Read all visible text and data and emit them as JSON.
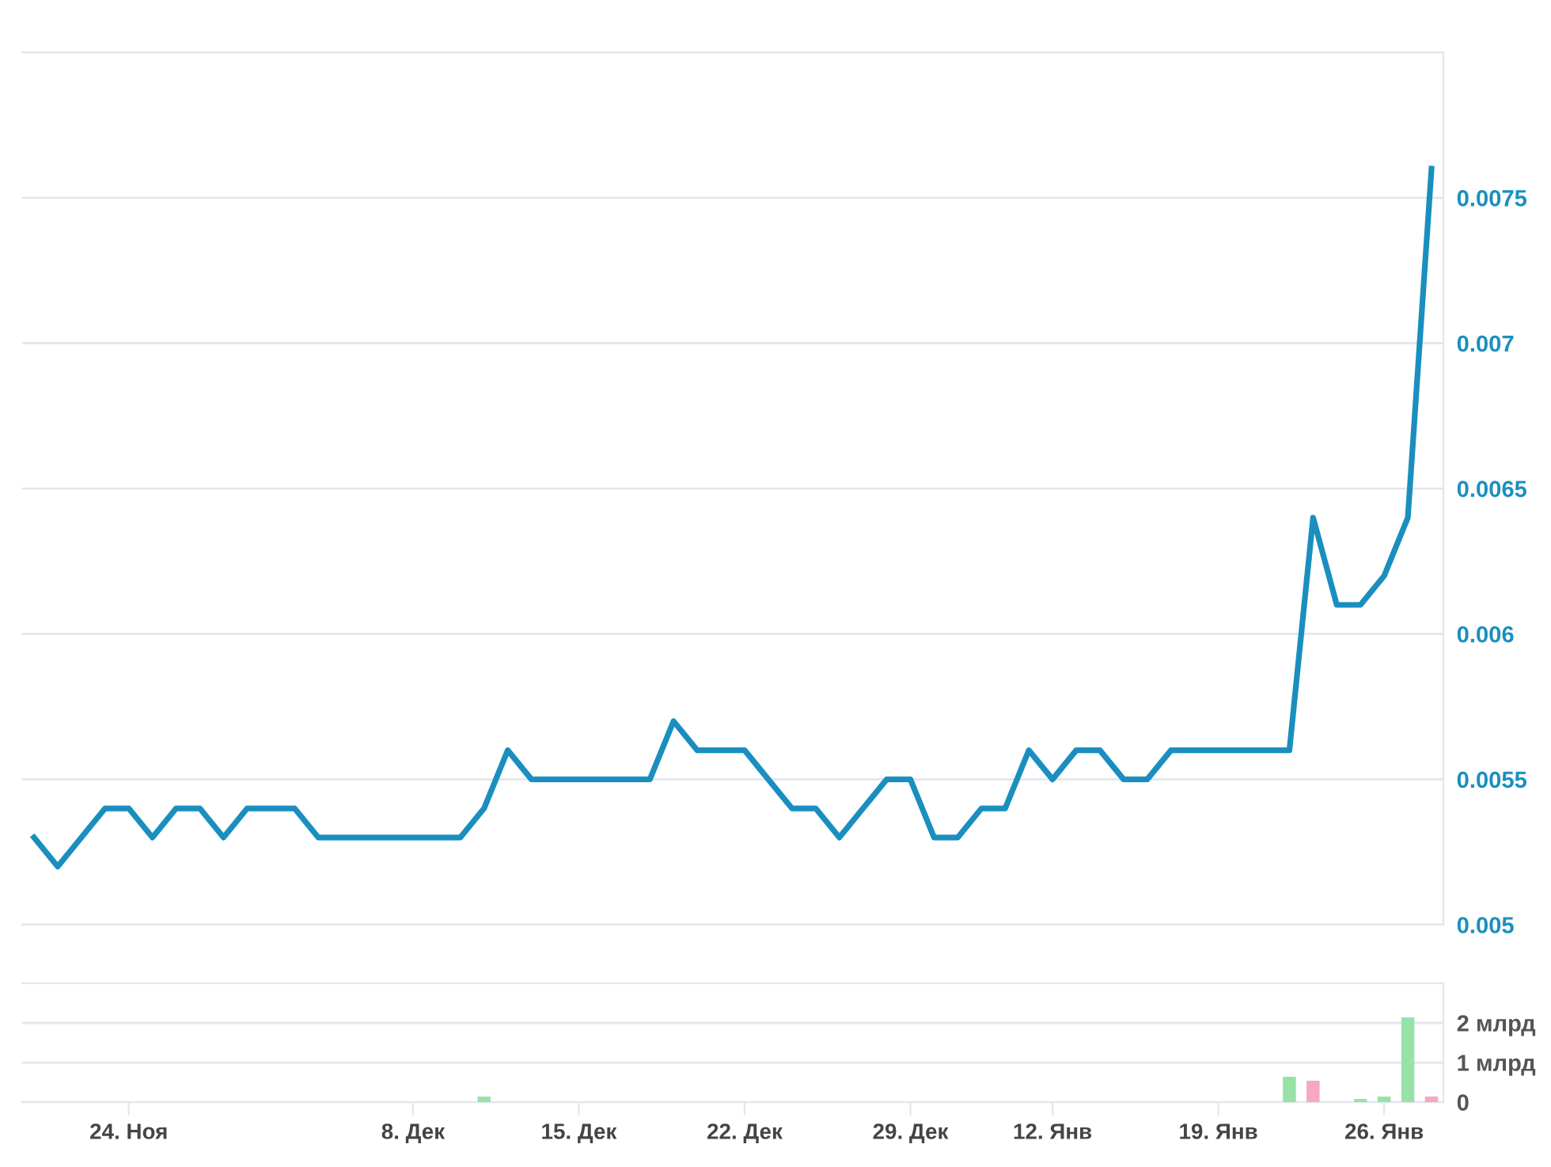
{
  "chart_data": [
    {
      "type": "line",
      "categories": [
        null,
        null,
        null,
        null,
        null,
        null,
        null,
        null,
        null,
        null,
        null,
        null,
        null,
        null,
        null,
        null,
        null,
        null,
        null,
        null,
        null,
        null,
        null,
        null,
        null,
        null,
        null,
        null,
        null,
        null,
        null,
        null,
        null,
        null,
        null,
        null,
        null,
        null,
        null,
        null,
        null,
        null,
        null,
        null,
        null,
        null,
        null,
        null,
        null,
        null,
        null,
        null,
        null,
        null,
        null,
        null,
        null,
        null,
        null,
        null
      ],
      "series": [
        {
          "color": "#1a8fbf",
          "values": [
            0.0053,
            0.0052,
            0.0053,
            0.0054,
            0.0054,
            0.0053,
            0.0054,
            0.0054,
            0.0053,
            0.0054,
            0.0054,
            0.0054,
            0.0053,
            0.0053,
            0.0053,
            0.0053,
            0.0053,
            0.0053,
            0.0053,
            0.0054,
            0.0056,
            0.0055,
            0.0055,
            0.0055,
            0.0055,
            0.0055,
            0.0055,
            0.0057,
            0.0056,
            0.0056,
            0.0056,
            0.0055,
            0.0054,
            0.0054,
            0.0053,
            0.0054,
            0.0055,
            0.0055,
            0.0053,
            0.0053,
            0.0054,
            0.0054,
            0.0056,
            0.0055,
            0.0056,
            0.0056,
            0.0055,
            0.0055,
            0.0056,
            0.0056,
            0.0056,
            0.0056,
            0.0056,
            0.0056,
            0.0064,
            0.0061,
            0.0061,
            0.0062,
            0.0064,
            0.0076
          ]
        }
      ],
      "ylim": [
        0.005,
        0.008
      ],
      "yticks": [
        0.005,
        0.0055,
        0.006,
        0.0065,
        0.007,
        0.0075
      ],
      "grid": "y",
      "marker": "none",
      "line_style": "solid"
    },
    {
      "type": "bar",
      "categories": [
        null,
        null,
        null,
        null,
        "24. Ноя",
        null,
        null,
        null,
        null,
        null,
        null,
        null,
        null,
        null,
        null,
        null,
        "8. Дек",
        null,
        null,
        null,
        null,
        null,
        null,
        "15. Дек",
        null,
        null,
        null,
        null,
        null,
        null,
        "22. Дек",
        null,
        null,
        null,
        null,
        null,
        null,
        "29. Дек",
        null,
        null,
        null,
        null,
        null,
        "12. Янв",
        null,
        null,
        null,
        null,
        null,
        null,
        "19. Янв",
        null,
        null,
        null,
        null,
        null,
        null,
        "26. Янв",
        null,
        null
      ],
      "series": [
        {
          "color": "#98e2a8",
          "values": [
            null,
            null,
            null,
            null,
            null,
            null,
            null,
            null,
            null,
            null,
            null,
            null,
            null,
            null,
            null,
            null,
            null,
            null,
            null,
            0.14,
            null,
            null,
            null,
            null,
            null,
            null,
            null,
            null,
            null,
            null,
            null,
            null,
            null,
            null,
            null,
            null,
            null,
            null,
            null,
            null,
            null,
            null,
            null,
            null,
            null,
            null,
            null,
            null,
            null,
            null,
            null,
            null,
            null,
            0.64,
            null,
            null,
            0.08,
            0.14,
            2.14,
            null
          ]
        },
        {
          "color": "#f7a8c0",
          "values": [
            null,
            null,
            null,
            null,
            null,
            null,
            null,
            null,
            null,
            null,
            null,
            null,
            null,
            null,
            null,
            null,
            null,
            null,
            null,
            null,
            null,
            null,
            null,
            null,
            null,
            null,
            null,
            null,
            null,
            null,
            null,
            null,
            null,
            null,
            null,
            null,
            null,
            null,
            null,
            null,
            null,
            null,
            null,
            null,
            null,
            null,
            null,
            null,
            null,
            null,
            null,
            null,
            null,
            null,
            0.54,
            null,
            null,
            null,
            null,
            0.14
          ]
        }
      ],
      "ylim": [
        0,
        3
      ],
      "yticks": [
        0,
        {
          "value": 1,
          "label": "1 млрд"
        },
        {
          "value": 2,
          "label": "2 млрд"
        }
      ],
      "grid": "y"
    }
  ]
}
